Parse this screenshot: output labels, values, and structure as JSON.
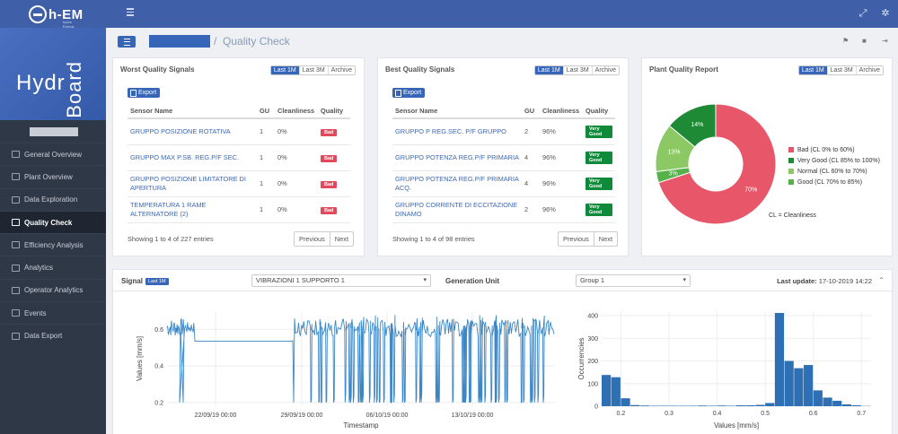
{
  "app": {
    "logo_text": "h-EM",
    "logo_tagline": "hydro Energy Management",
    "brand_top": "Hydr",
    "brand_side": "Board"
  },
  "sidebar": {
    "items": [
      {
        "label": "General Overview",
        "icon": "map-icon"
      },
      {
        "label": "Plant Overview",
        "icon": "book-icon"
      },
      {
        "label": "Data Exploration",
        "icon": "bar-chart-icon"
      },
      {
        "label": "Quality Check",
        "icon": "diamond-icon",
        "active": true
      },
      {
        "label": "Efficiency Analysis",
        "icon": "sliders-icon"
      },
      {
        "label": "Analytics",
        "icon": "line-chart-icon"
      },
      {
        "label": "Operator Analytics",
        "icon": "user-icon"
      },
      {
        "label": "Events",
        "icon": "calendar-icon"
      },
      {
        "label": "Data Export",
        "icon": "file-icon"
      }
    ]
  },
  "header": {
    "breadcrumb_sep": "/",
    "page_title": "Quality Check"
  },
  "period": {
    "m1": "Last 1M",
    "m3": "Last 3M",
    "archive": "Archive"
  },
  "worst": {
    "title": "Worst Quality Signals",
    "export": "Export",
    "columns": [
      "Sensor Name",
      "GU",
      "Cleanliness",
      "Quality"
    ],
    "rows": [
      [
        "GRUPPO POSIZIONE ROTATIVA",
        "1",
        "0%",
        "Bad"
      ],
      [
        "GRUPPO MAX P.SB. REG.P/F SEC.",
        "1",
        "0%",
        "Bad"
      ],
      [
        "GRUPPO POSIZIONE LIMITATORE DI APERTURA",
        "1",
        "0%",
        "Bad"
      ],
      [
        "TEMPERATURA 1 RAME ALTERNATORE (2)",
        "1",
        "0%",
        "Bad"
      ]
    ],
    "showing": "Showing 1 to 4 of 227 entries",
    "prev": "Previous",
    "next": "Next"
  },
  "best": {
    "title": "Best Quality Signals",
    "export": "Export",
    "columns": [
      "Sensor Name",
      "GU",
      "Cleanliness",
      "Quality"
    ],
    "rows": [
      [
        "GRUPPO P REG.SEC. P/F GRUPPO",
        "2",
        "96%",
        "Very Good"
      ],
      [
        "GRUPPO POTENZA REG.P/F PRIMARIA",
        "4",
        "96%",
        "Very Good"
      ],
      [
        "GRUPPO POTENZA REG.P/F PRIMARIA ACQ.",
        "4",
        "96%",
        "Very Good"
      ],
      [
        "GRUPPO CORRENTE DI ECCITAZIONE DINAMO",
        "2",
        "96%",
        "Very Good"
      ]
    ],
    "showing": "Showing 1 to 4 of 98 entries",
    "prev": "Previous",
    "next": "Next"
  },
  "plant": {
    "title": "Plant Quality Report",
    "cl_note": "CL = Cleanliness"
  },
  "signal_bar": {
    "signal_label": "Signal",
    "signal_pill": "Last 1M",
    "signal_value": "VIBRAZIONI 1 SUPPORTO 1",
    "gen_label": "Generation Unit",
    "gen_value": "Group 1",
    "last_update_label": "Last update:",
    "last_update_value": "17-10-2019 14:22"
  },
  "chart_data": [
    {
      "type": "pie",
      "title": "Plant Quality Report",
      "legend": "right",
      "slices": [
        {
          "name": "Bad (CL 0% to 60%)",
          "value": 70,
          "label": "70%",
          "color": "#e8566a"
        },
        {
          "name": "Very Good (CL 85% to 100%)",
          "value": 14,
          "label": "14%",
          "color": "#1e8a35"
        },
        {
          "name": "Normal (CL 60% to 70%)",
          "value": 13,
          "label": "13%",
          "color": "#8cc965"
        },
        {
          "name": "Good (CL 70% to 85%)",
          "value": 3,
          "label": "3%",
          "color": "#55b24a"
        }
      ]
    },
    {
      "type": "line",
      "xlabel": "Timestamp",
      "ylabel": "Values [mm/s]",
      "ylim": [
        0.18,
        0.7
      ],
      "x_ticks": [
        "22/09/19 00:00",
        "29/09/19 00:00",
        "06/10/19 00:00",
        "13/10/19 00:00"
      ],
      "y_ticks": [
        0.2,
        0.4,
        0.6
      ],
      "color": "#3a86c6",
      "series": [
        {
          "x": [],
          "y": []
        }
      ]
    },
    {
      "type": "bar",
      "xlabel": "Values [mm/s]",
      "ylabel": "Occurrencies",
      "ylim": [
        0,
        420
      ],
      "xlim": [
        0.16,
        0.72
      ],
      "x_ticks": [
        0.2,
        0.3,
        0.4,
        0.5,
        0.6,
        0.7
      ],
      "y_ticks": [
        0,
        100,
        200,
        300,
        400
      ],
      "bin_width": 0.02,
      "bin_starts": [
        0.16,
        0.18,
        0.2,
        0.22,
        0.24,
        0.26,
        0.28,
        0.3,
        0.32,
        0.34,
        0.36,
        0.38,
        0.4,
        0.42,
        0.44,
        0.46,
        0.48,
        0.5,
        0.52,
        0.54,
        0.56,
        0.58,
        0.6,
        0.62,
        0.64,
        0.66,
        0.68,
        0.7
      ],
      "values": [
        138,
        128,
        35,
        5,
        3,
        2,
        2,
        2,
        2,
        2,
        3,
        2,
        3,
        2,
        4,
        4,
        6,
        14,
        412,
        200,
        168,
        182,
        70,
        38,
        24,
        8,
        4,
        1
      ],
      "color": "#2f6fb3"
    }
  ]
}
